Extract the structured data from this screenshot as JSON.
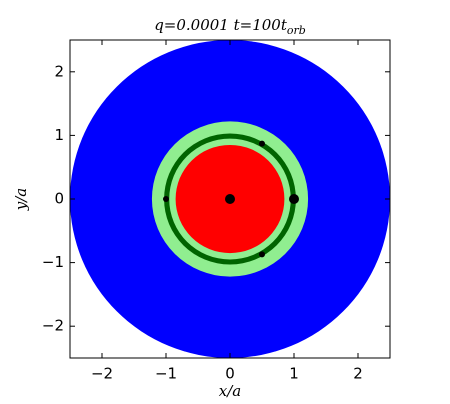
{
  "chart_data": {
    "type": "scatter",
    "title": [
      "q=0.0001 t=100t",
      "orb"
    ],
    "xlabel": "x/a",
    "ylabel": "y/a",
    "xlim": [
      -2.5,
      2.5
    ],
    "ylim": [
      -2.5,
      2.5
    ],
    "xticks": [
      {
        "value": -2,
        "label": "−2"
      },
      {
        "value": -1,
        "label": "−1"
      },
      0,
      1,
      2
    ],
    "yticks": [
      {
        "value": -2,
        "label": "−2"
      },
      {
        "value": -1,
        "label": "−1"
      },
      0,
      1,
      2
    ],
    "regions": [
      {
        "color": "#0000ff",
        "radii": [
          0,
          2.5
        ]
      },
      {
        "color": "#90ee90",
        "radii": [
          0.55,
          1.22
        ]
      },
      {
        "color": "#ff0000",
        "radii": [
          0,
          0.85
        ]
      },
      {
        "color": "#006400",
        "radii": [
          0.95,
          1.03
        ]
      }
    ],
    "points": {
      "color": "#000000",
      "x": [
        0,
        1,
        0.5,
        0.5,
        -1
      ],
      "y": [
        0,
        0,
        0.87,
        -0.87,
        0
      ],
      "sizes": [
        5,
        5,
        3,
        3,
        3
      ]
    }
  }
}
